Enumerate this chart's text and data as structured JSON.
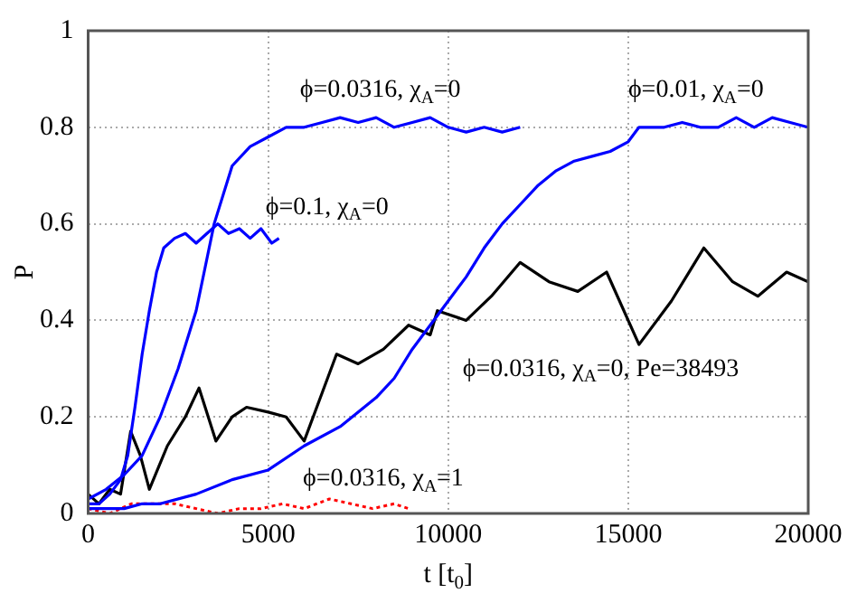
{
  "chart_data": {
    "type": "line",
    "xlabel": "t [t$_{0}$]",
    "ylabel": "P",
    "xlim": [
      0,
      20000
    ],
    "ylim": [
      0,
      1
    ],
    "xticks": [
      0,
      5000,
      10000,
      15000,
      20000
    ],
    "yticks": [
      0,
      0.2,
      0.4,
      0.6,
      0.8,
      1
    ],
    "grid": true,
    "legend": false,
    "marker": "none",
    "series": [
      {
        "name": "ϕ=0.1, χ$_{A}$=0",
        "color": "#0000ff",
        "x": [
          0,
          300,
          600,
          900,
          1100,
          1300,
          1500,
          1700,
          1900,
          2100,
          2400,
          2700,
          3000,
          3300,
          3600,
          3900,
          4200,
          4500,
          4800,
          5100,
          5300
        ],
        "values": [
          0.02,
          0.02,
          0.04,
          0.07,
          0.12,
          0.22,
          0.33,
          0.42,
          0.5,
          0.55,
          0.57,
          0.58,
          0.56,
          0.58,
          0.6,
          0.58,
          0.59,
          0.57,
          0.59,
          0.56,
          0.57
        ]
      },
      {
        "name": "ϕ=0.0316, χ$_{A}$=0",
        "color": "#0000ff",
        "x": [
          0,
          500,
          1000,
          1500,
          2000,
          2500,
          3000,
          3500,
          4000,
          4500,
          5000,
          5500,
          6000,
          6500,
          7000,
          7500,
          8000,
          8500,
          9000,
          9500,
          10000,
          10500,
          11000,
          11500,
          12000
        ],
        "values": [
          0.03,
          0.05,
          0.08,
          0.12,
          0.2,
          0.3,
          0.42,
          0.6,
          0.72,
          0.76,
          0.78,
          0.8,
          0.8,
          0.81,
          0.82,
          0.81,
          0.82,
          0.8,
          0.81,
          0.82,
          0.8,
          0.79,
          0.8,
          0.79,
          0.8
        ]
      },
      {
        "name": "ϕ=0.01, χ$_{A}$=0",
        "color": "#0000ff",
        "x": [
          0,
          1000,
          1500,
          2000,
          3000,
          4000,
          5000,
          6000,
          7000,
          8000,
          8500,
          9000,
          9500,
          10000,
          10500,
          11000,
          11500,
          12000,
          12500,
          13000,
          13500,
          14000,
          14500,
          15000,
          15300,
          16000,
          16500,
          17000,
          17500,
          18000,
          18500,
          19000,
          19500,
          20000
        ],
        "values": [
          0.01,
          0.01,
          0.02,
          0.02,
          0.04,
          0.07,
          0.09,
          0.14,
          0.18,
          0.24,
          0.28,
          0.34,
          0.39,
          0.44,
          0.49,
          0.55,
          0.6,
          0.64,
          0.68,
          0.71,
          0.73,
          0.74,
          0.75,
          0.77,
          0.8,
          0.8,
          0.81,
          0.8,
          0.8,
          0.82,
          0.8,
          0.82,
          0.81,
          0.8
        ]
      },
      {
        "name": "ϕ=0.0316, χ$_{A}$=0, Pe=38493",
        "color": "#000000",
        "x": [
          0,
          300,
          600,
          900,
          1180,
          1450,
          1700,
          2200,
          2700,
          3080,
          3550,
          4000,
          4400,
          5000,
          5500,
          6000,
          6500,
          6900,
          7500,
          8200,
          8900,
          9500,
          9700,
          10500,
          11200,
          12000,
          12800,
          13600,
          14400,
          15300,
          16200,
          17100,
          17900,
          18600,
          19400,
          20000
        ],
        "values": [
          0.04,
          0.02,
          0.05,
          0.04,
          0.17,
          0.12,
          0.05,
          0.14,
          0.2,
          0.26,
          0.15,
          0.2,
          0.22,
          0.21,
          0.2,
          0.15,
          0.25,
          0.33,
          0.31,
          0.34,
          0.39,
          0.37,
          0.42,
          0.4,
          0.45,
          0.52,
          0.48,
          0.46,
          0.5,
          0.35,
          0.44,
          0.55,
          0.48,
          0.45,
          0.5,
          0.48
        ]
      },
      {
        "name": "ϕ=0.0316, χ$_{A}$=1",
        "color": "#ff0000",
        "line_style": "dotted",
        "x": [
          0,
          600,
          1200,
          1800,
          2400,
          3000,
          3600,
          4200,
          4800,
          5400,
          6000,
          6700,
          7300,
          7900,
          8500,
          8900
        ],
        "values": [
          0.01,
          0.0,
          0.02,
          0.02,
          0.02,
          0.01,
          0.0,
          0.01,
          0.01,
          0.02,
          0.01,
          0.03,
          0.02,
          0.01,
          0.02,
          0.01
        ]
      }
    ]
  }
}
